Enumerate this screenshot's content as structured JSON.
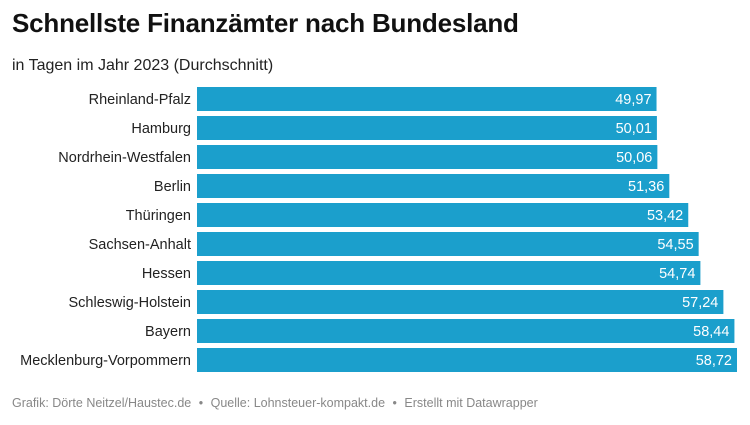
{
  "chart_data": {
    "type": "bar",
    "orientation": "horizontal",
    "title": "Schnellste Finanzämter nach Bundesland",
    "subtitle": "in Tagen im Jahr 2023 (Durchschnitt)",
    "categories": [
      "Rheinland-Pfalz",
      "Hamburg",
      "Nordrhein-Westfalen",
      "Berlin",
      "Thüringen",
      "Sachsen-Anhalt",
      "Hessen",
      "Schleswig-Holstein",
      "Bayern",
      "Mecklenburg-Vorpommern"
    ],
    "values": [
      49.97,
      50.01,
      50.06,
      51.36,
      53.42,
      54.55,
      54.74,
      57.24,
      58.44,
      58.72
    ],
    "value_labels": [
      "49,97",
      "50,01",
      "50,06",
      "51,36",
      "53,42",
      "54,55",
      "54,74",
      "57,24",
      "58,44",
      "58,72"
    ],
    "xlim": [
      0,
      58.72
    ],
    "grid": false,
    "bar_color": "#1b9fcc",
    "label_color": "#ffffff"
  },
  "footer": {
    "graphic": "Grafik: Dörte Neitzel/Haustec.de",
    "source": "Quelle: Lohnsteuer-kompakt.de",
    "tool": "Erstellt mit Datawrapper",
    "separator": "•"
  }
}
